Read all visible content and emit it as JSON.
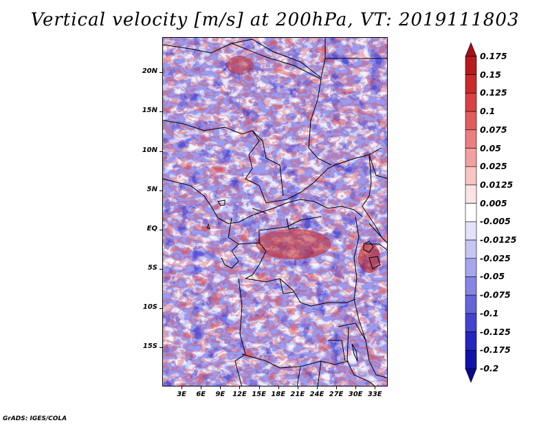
{
  "title": "Vertical velocity [m/s] at 200hPa, VT: 2019111803",
  "credit": "GrADS: IGES/COLA",
  "map": {
    "lat_range": [
      -20,
      24.5
    ],
    "lon_range": [
      0,
      35
    ],
    "lat_ticks": [
      {
        "label": "20N",
        "lat": 20
      },
      {
        "label": "15N",
        "lat": 15
      },
      {
        "label": "10N",
        "lat": 10
      },
      {
        "label": "5N",
        "lat": 5
      },
      {
        "label": "EQ",
        "lat": 0
      },
      {
        "label": "5S",
        "lat": -5
      },
      {
        "label": "10S",
        "lat": -10
      },
      {
        "label": "15S",
        "lat": -15
      }
    ],
    "lon_ticks": [
      {
        "label": "3E",
        "lon": 3
      },
      {
        "label": "6E",
        "lon": 6
      },
      {
        "label": "9E",
        "lon": 9
      },
      {
        "label": "12E",
        "lon": 12
      },
      {
        "label": "15E",
        "lon": 15
      },
      {
        "label": "18E",
        "lon": 18
      },
      {
        "label": "21E",
        "lon": 21
      },
      {
        "label": "24E",
        "lon": 24
      },
      {
        "label": "27E",
        "lon": 27
      },
      {
        "label": "30E",
        "lon": 30
      },
      {
        "label": "33E",
        "lon": 33
      }
    ]
  },
  "colorbar": {
    "labels": [
      "0.175",
      "0.15",
      "0.125",
      "0.1",
      "0.075",
      "0.05",
      "0.025",
      "0.0125",
      "0.005",
      "-0.005",
      "-0.0125",
      "-0.025",
      "-0.05",
      "-0.075",
      "-0.1",
      "-0.125",
      "-0.175",
      "-0.2"
    ],
    "colors": [
      "#a50f15",
      "#b8191f",
      "#cb2a2a",
      "#d94141",
      "#e35d5d",
      "#eb7e7e",
      "#f2a0a0",
      "#f8c4c4",
      "#fce4e4",
      "#ffffff",
      "#e2e2fb",
      "#c6c6f5",
      "#a6a6ee",
      "#8585e6",
      "#6464dc",
      "#4343cf",
      "#2525bf",
      "#1111aa",
      "#0a0a8c"
    ]
  }
}
